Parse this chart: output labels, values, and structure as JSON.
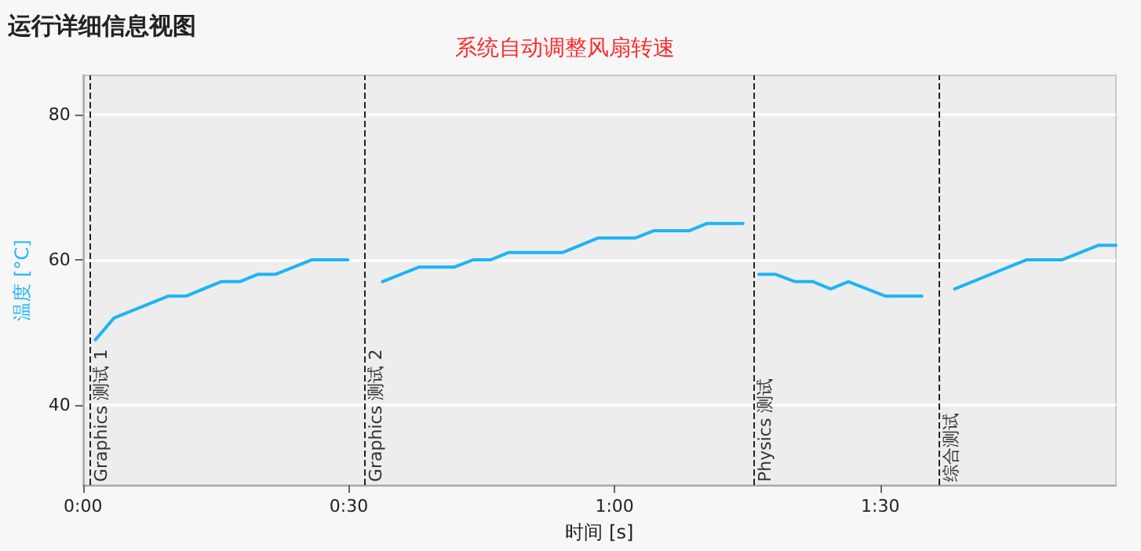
{
  "chart_data": {
    "type": "line",
    "title": "运行详细信息视图",
    "xlabel": "时间 [s]",
    "ylabel": "温度 [°C]",
    "annotations": [
      "系统自动调整风扇转速"
    ],
    "x": [
      1.4,
      3.5,
      9.6,
      11.6,
      15.6,
      17.7,
      19.7,
      21.7,
      25.8,
      29.9,
      31.8,
      33.8,
      37.9,
      41.9,
      44,
      46,
      48,
      54.1,
      58.1,
      62.3,
      64.4,
      68.4,
      70.4,
      74.5,
      75.4,
      76.3,
      78.2,
      80.4,
      82.4,
      84.4,
      86.4,
      90.6,
      94.7,
      96.5,
      98.4,
      106.5,
      110.5,
      114.6,
      116.6
    ],
    "series": [
      {
        "color": "#1eb4f5",
        "values": [
          49,
          52,
          55,
          55,
          57,
          57,
          58,
          58,
          60,
          60,
          null,
          57,
          59,
          59,
          60,
          60,
          61,
          61,
          63,
          63,
          64,
          64,
          65,
          65,
          null,
          58,
          58,
          57,
          57,
          56,
          57,
          55,
          55,
          null,
          56,
          60,
          60,
          62,
          62
        ]
      }
    ],
    "xlim": [
      0,
      116.6
    ],
    "xticks": [
      {
        "value": 0,
        "label": "0:00"
      },
      {
        "value": 30,
        "label": "0:30"
      },
      {
        "value": 60,
        "label": "1:00"
      },
      {
        "value": 90,
        "label": "1:30"
      }
    ],
    "ylim": [
      29,
      85.4
    ],
    "yticks": [
      40,
      60,
      80
    ],
    "grid": "y",
    "marker": "none",
    "line_style": "solid",
    "ref_lines": [
      {
        "axis": "x",
        "value": 0.7,
        "label": "Graphics 测试 1",
        "line_style": "dashed"
      },
      {
        "axis": "x",
        "value": 31.7,
        "label": "Graphics 测试 2",
        "line_style": "dashed"
      },
      {
        "axis": "x",
        "value": 75.7,
        "label": "Physics 测试",
        "line_style": "dashed"
      },
      {
        "axis": "x",
        "value": 96.7,
        "label": "综合测试",
        "line_style": "dashed"
      }
    ]
  }
}
